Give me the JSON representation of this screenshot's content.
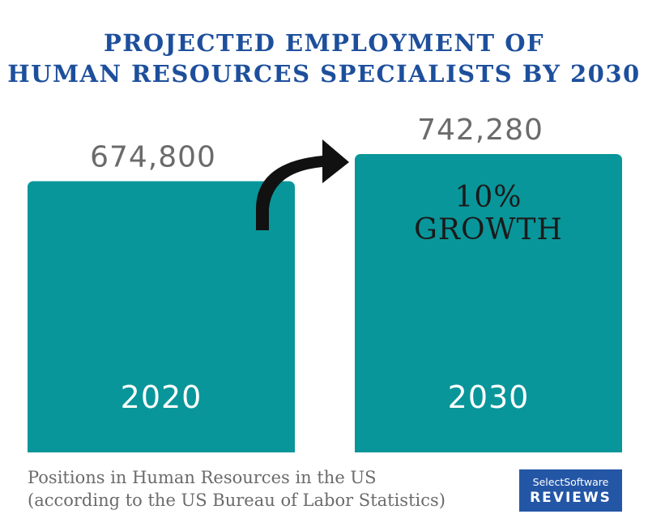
{
  "header": {
    "title_line1": "PROJECTED EMPLOYMENT OF",
    "title_line2": "HUMAN RESOURCES SPECIALISTS BY 2030"
  },
  "chart_data": {
    "type": "bar",
    "title": "PROJECTED EMPLOYMENT OF HUMAN RESOURCES SPECIALISTS BY 2030",
    "categories": [
      "2020",
      "2030"
    ],
    "values": [
      674800,
      742280
    ],
    "value_labels": [
      "674,800",
      "742,280"
    ],
    "annotation_line1": "10%",
    "annotation_line2": "GROWTH",
    "bar_color": "#09969a",
    "value_label_color": "#6b6b6b",
    "category_label_color": "#ffffff",
    "grid": false,
    "legend": "none"
  },
  "footnote": {
    "line1": "Positions in Human Resources in the US",
    "line2": "(according to the US Bureau of Labor Statistics)"
  },
  "logo": {
    "top": "SelectSoftware",
    "bottom": "REVIEWS",
    "color": "#2456a6"
  }
}
